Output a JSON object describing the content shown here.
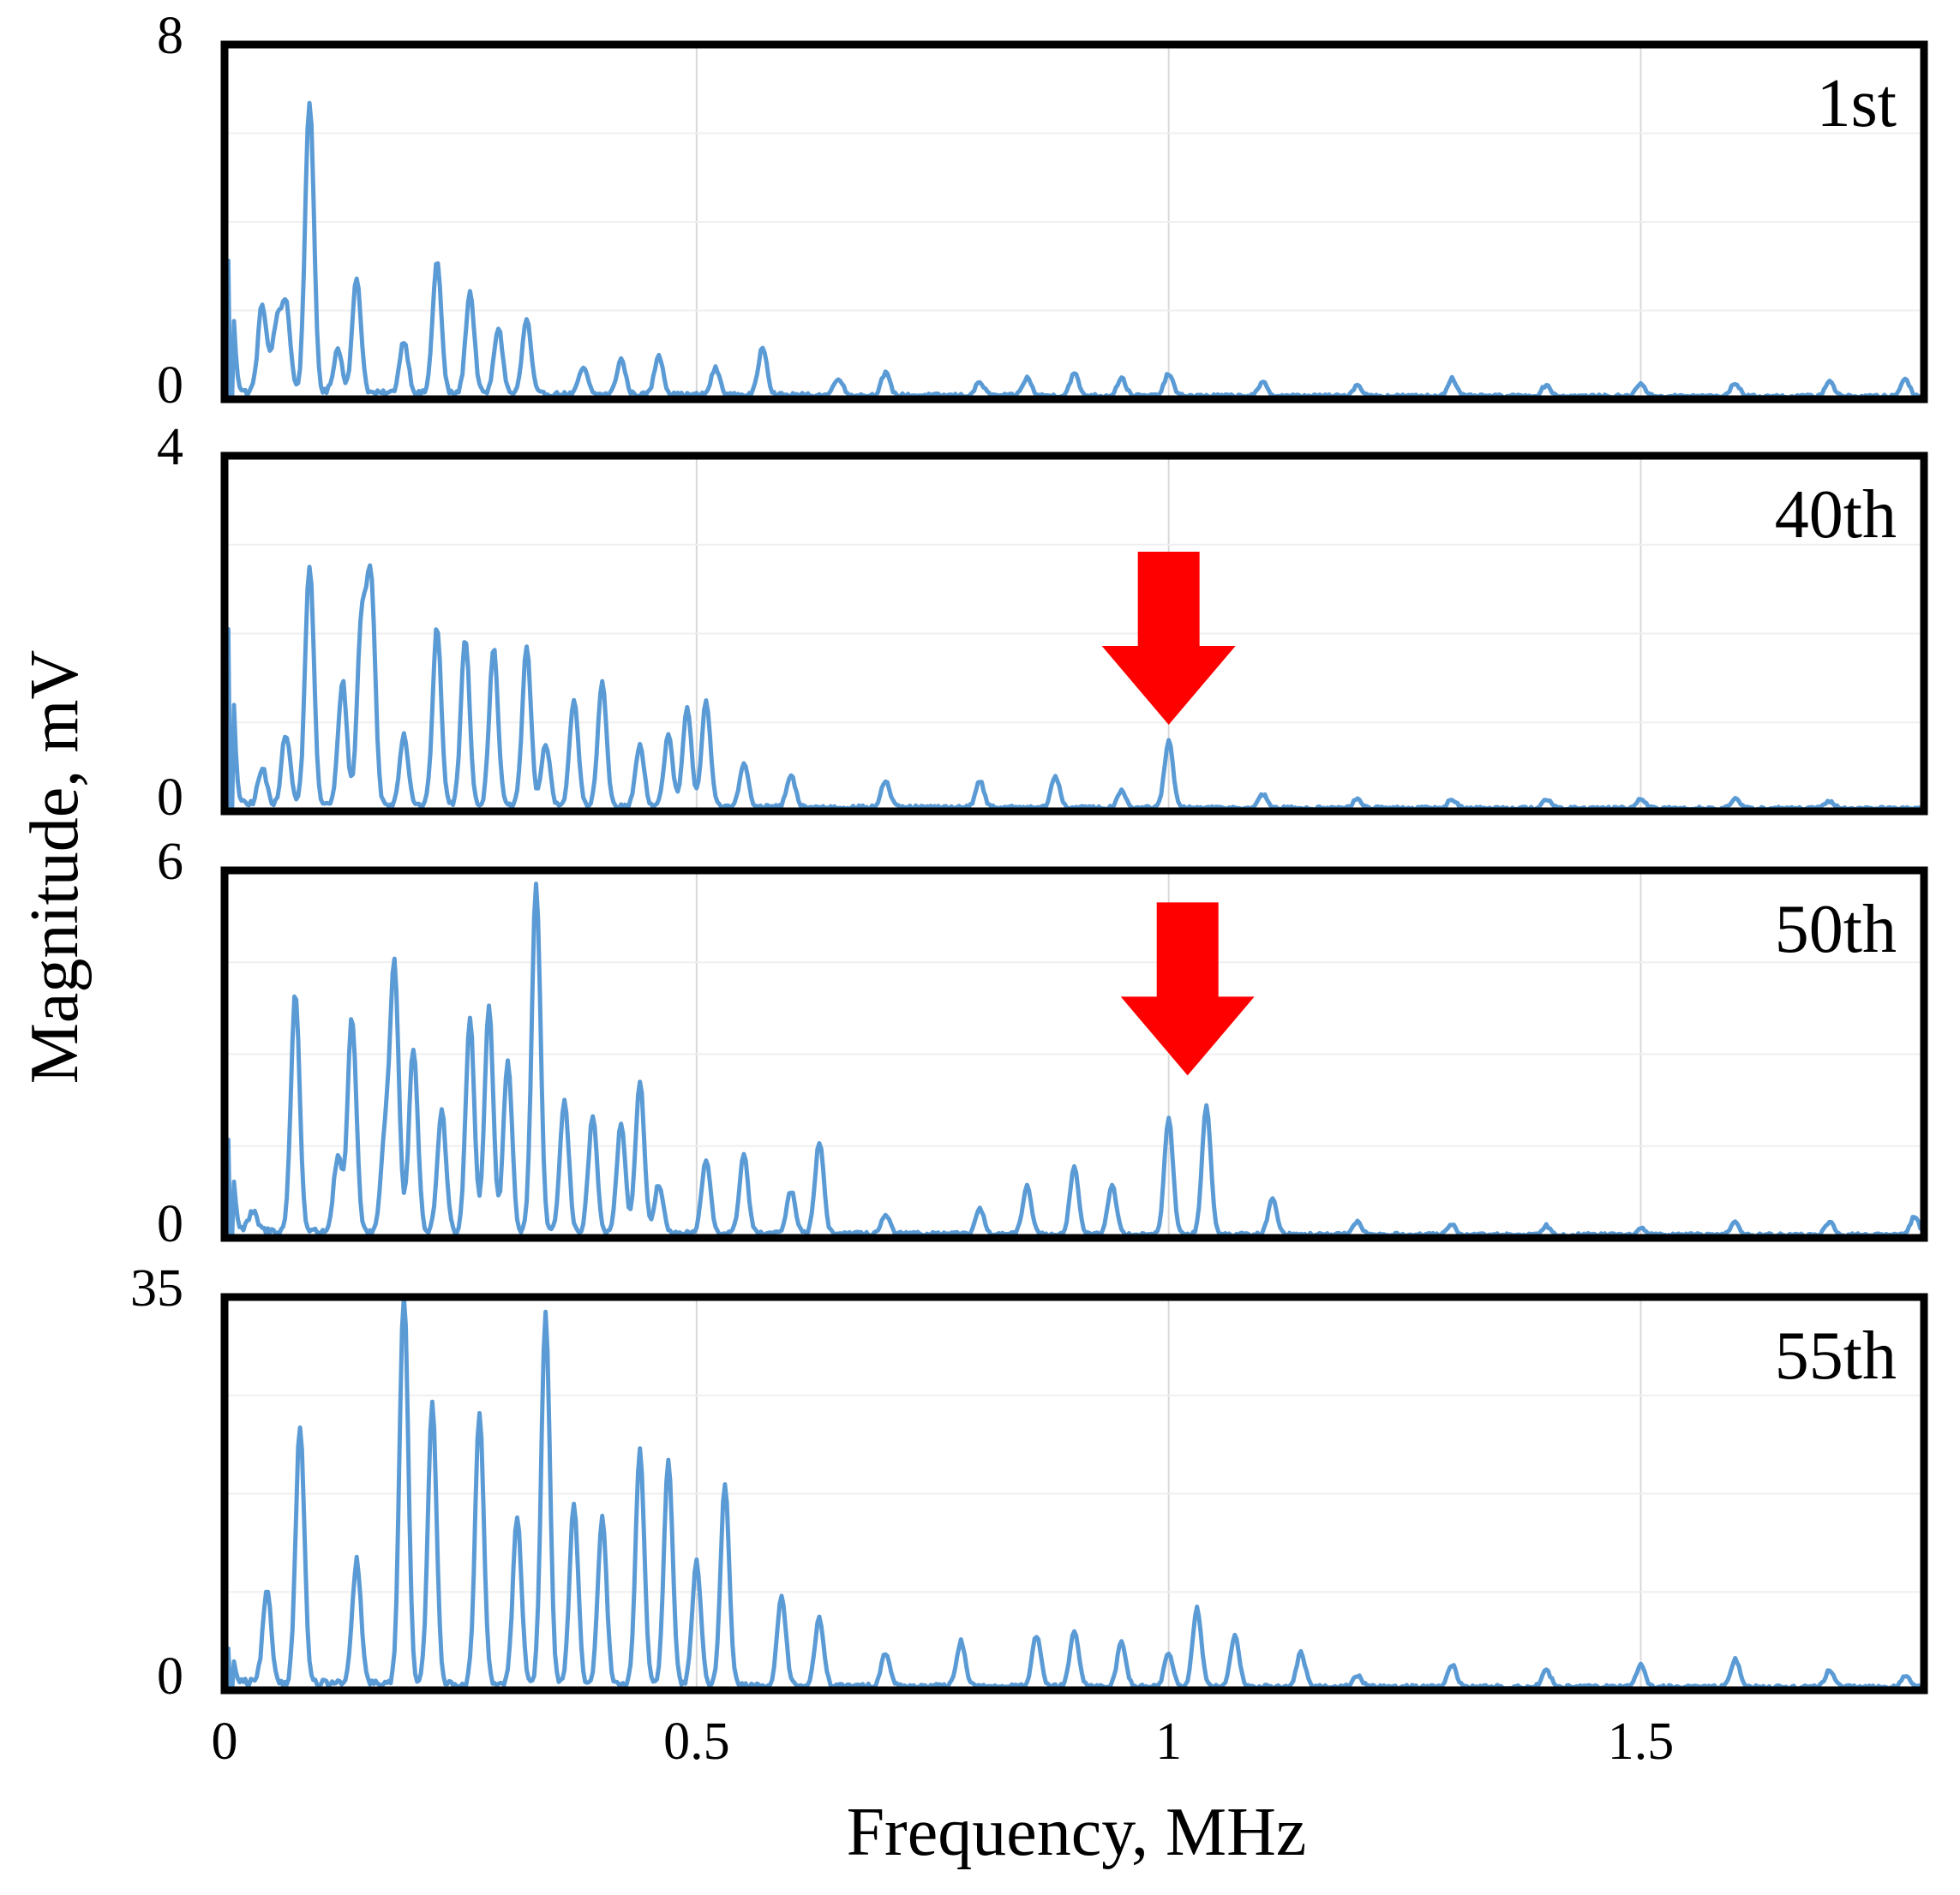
{
  "figure": {
    "xlabel": "Frequency, MHz",
    "ylabel": "Magnitude, mV",
    "line_color": "#5b9bd5",
    "arrow_color": "#ff0000",
    "grid_color": "#d9d9d9",
    "frame_color": "#000000"
  },
  "chart_data": [
    {
      "type": "line",
      "label": "1st",
      "xlim": [
        0,
        1.8
      ],
      "ylim": [
        0,
        8
      ],
      "x_ticks": [
        0,
        0.5,
        1,
        1.5
      ],
      "y_tick_labels": [
        "0",
        "8"
      ],
      "grid": true,
      "annotation": null,
      "peaks": [
        [
          0.005,
          3.0
        ],
        [
          0.04,
          2.0
        ],
        [
          0.055,
          1.5
        ],
        [
          0.065,
          2.0
        ],
        [
          0.09,
          6.6
        ],
        [
          0.12,
          1.0
        ],
        [
          0.14,
          2.6
        ],
        [
          0.19,
          1.2
        ],
        [
          0.225,
          3.0
        ],
        [
          0.26,
          2.3
        ],
        [
          0.29,
          1.5
        ],
        [
          0.32,
          1.7
        ],
        [
          0.38,
          0.6
        ],
        [
          0.42,
          0.8
        ],
        [
          0.46,
          0.9
        ],
        [
          0.52,
          0.6
        ],
        [
          0.57,
          1.1
        ],
        [
          0.65,
          0.4
        ],
        [
          0.7,
          0.5
        ],
        [
          0.8,
          0.3
        ],
        [
          0.85,
          0.4
        ],
        [
          0.9,
          0.5
        ],
        [
          0.95,
          0.4
        ],
        [
          1.0,
          0.5
        ],
        [
          1.1,
          0.3
        ],
        [
          1.2,
          0.25
        ],
        [
          1.3,
          0.4
        ],
        [
          1.4,
          0.25
        ],
        [
          1.5,
          0.3
        ],
        [
          1.6,
          0.3
        ],
        [
          1.7,
          0.35
        ],
        [
          1.78,
          0.4
        ]
      ]
    },
    {
      "type": "line",
      "label": "40th",
      "xlim": [
        0,
        1.8
      ],
      "ylim": [
        0,
        4
      ],
      "x_ticks": [
        0,
        0.5,
        1,
        1.5
      ],
      "y_tick_labels": [
        "0",
        "4"
      ],
      "grid": true,
      "annotation": {
        "type": "arrow",
        "x": 1.0,
        "target_y": 0.8
      },
      "peaks": [
        [
          0.005,
          2.0
        ],
        [
          0.04,
          0.4
        ],
        [
          0.065,
          0.8
        ],
        [
          0.09,
          2.7
        ],
        [
          0.125,
          1.4
        ],
        [
          0.145,
          2.0
        ],
        [
          0.155,
          2.5
        ],
        [
          0.19,
          0.8
        ],
        [
          0.225,
          2.0
        ],
        [
          0.255,
          1.9
        ],
        [
          0.285,
          1.8
        ],
        [
          0.32,
          1.8
        ],
        [
          0.34,
          0.7
        ],
        [
          0.37,
          1.2
        ],
        [
          0.4,
          1.4
        ],
        [
          0.44,
          0.7
        ],
        [
          0.47,
          0.8
        ],
        [
          0.49,
          1.1
        ],
        [
          0.51,
          1.2
        ],
        [
          0.55,
          0.5
        ],
        [
          0.6,
          0.35
        ],
        [
          0.7,
          0.3
        ],
        [
          0.8,
          0.3
        ],
        [
          0.88,
          0.35
        ],
        [
          0.95,
          0.2
        ],
        [
          1.0,
          0.75
        ],
        [
          1.1,
          0.15
        ],
        [
          1.2,
          0.1
        ],
        [
          1.3,
          0.1
        ],
        [
          1.4,
          0.1
        ],
        [
          1.5,
          0.1
        ],
        [
          1.6,
          0.1
        ],
        [
          1.7,
          0.08
        ]
      ]
    },
    {
      "type": "line",
      "label": "50th",
      "xlim": [
        0,
        1.8
      ],
      "ylim": [
        0,
        6
      ],
      "x_ticks": [
        0,
        0.5,
        1,
        1.5
      ],
      "y_tick_labels": [
        "0",
        "6"
      ],
      "grid": true,
      "annotation": {
        "type": "arrow",
        "x": 1.02,
        "target_y": 2.4
      },
      "peaks": [
        [
          0.005,
          1.5
        ],
        [
          0.03,
          0.3
        ],
        [
          0.075,
          3.9
        ],
        [
          0.12,
          1.2
        ],
        [
          0.135,
          3.5
        ],
        [
          0.17,
          1.5
        ],
        [
          0.18,
          4.3
        ],
        [
          0.2,
          3.0
        ],
        [
          0.23,
          2.0
        ],
        [
          0.26,
          3.5
        ],
        [
          0.28,
          3.7
        ],
        [
          0.3,
          2.8
        ],
        [
          0.33,
          5.7
        ],
        [
          0.36,
          2.2
        ],
        [
          0.39,
          1.9
        ],
        [
          0.42,
          1.8
        ],
        [
          0.44,
          2.5
        ],
        [
          0.46,
          0.8
        ],
        [
          0.51,
          1.2
        ],
        [
          0.55,
          1.3
        ],
        [
          0.6,
          0.7
        ],
        [
          0.63,
          1.5
        ],
        [
          0.7,
          0.3
        ],
        [
          0.8,
          0.4
        ],
        [
          0.85,
          0.8
        ],
        [
          0.9,
          1.1
        ],
        [
          0.94,
          0.8
        ],
        [
          1.0,
          1.9
        ],
        [
          1.04,
          2.1
        ],
        [
          1.11,
          0.6
        ],
        [
          1.2,
          0.2
        ],
        [
          1.3,
          0.15
        ],
        [
          1.4,
          0.15
        ],
        [
          1.5,
          0.1
        ],
        [
          1.6,
          0.2
        ],
        [
          1.7,
          0.2
        ],
        [
          1.79,
          0.3
        ]
      ]
    },
    {
      "type": "line",
      "label": "55th",
      "xlim": [
        0,
        1.8
      ],
      "ylim": [
        0,
        35
      ],
      "x_ticks": [
        0,
        0.5,
        1,
        1.5
      ],
      "x_tick_labels": [
        "0",
        "0.5",
        "1",
        "1.5"
      ],
      "y_tick_labels": [
        "0",
        "35"
      ],
      "grid": true,
      "annotation": null,
      "peaks": [
        [
          0.005,
          3.0
        ],
        [
          0.045,
          8.0
        ],
        [
          0.08,
          23.0
        ],
        [
          0.14,
          11.0
        ],
        [
          0.19,
          35.0
        ],
        [
          0.22,
          25.0
        ],
        [
          0.27,
          24.0
        ],
        [
          0.31,
          15.0
        ],
        [
          0.34,
          33.0
        ],
        [
          0.37,
          16.0
        ],
        [
          0.4,
          15.0
        ],
        [
          0.44,
          21.0
        ],
        [
          0.47,
          20.0
        ],
        [
          0.5,
          11.0
        ],
        [
          0.53,
          18.0
        ],
        [
          0.59,
          8.0
        ],
        [
          0.63,
          6.0
        ],
        [
          0.7,
          3.0
        ],
        [
          0.78,
          4.0
        ],
        [
          0.86,
          4.5
        ],
        [
          0.9,
          5.0
        ],
        [
          0.95,
          4.0
        ],
        [
          1.0,
          3.0
        ],
        [
          1.03,
          7.0
        ],
        [
          1.07,
          4.5
        ],
        [
          1.14,
          3.0
        ],
        [
          1.2,
          1.0
        ],
        [
          1.3,
          2.0
        ],
        [
          1.4,
          1.5
        ],
        [
          1.5,
          2.0
        ],
        [
          1.6,
          2.5
        ],
        [
          1.7,
          1.5
        ],
        [
          1.78,
          1.0
        ]
      ]
    }
  ]
}
